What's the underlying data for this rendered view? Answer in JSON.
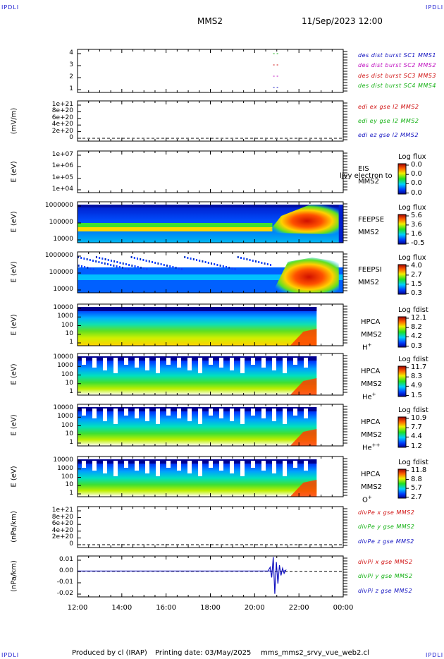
{
  "header": {
    "corner_label": "IPDLI",
    "spacecraft": "MMS2",
    "date_time": "11/Sep/2023 12:00"
  },
  "footer": {
    "produced_by": "Produced by cl (IRAP)",
    "printing_date": "Printing date: 03/May/2025",
    "script_name": "mms_mms2_srvy_vue_web2.cl"
  },
  "x_axis": {
    "ticks": [
      "12:00",
      "14:00",
      "16:00",
      "18:00",
      "20:00",
      "22:00",
      "00:00"
    ]
  },
  "colors": {
    "blue": "#1010c0",
    "magenta": "#c010c0",
    "red": "#d01010",
    "green": "#10b010"
  },
  "chart_data": [
    {
      "type": "scatter",
      "panel": "burst",
      "yticks": [
        "4",
        "3",
        "2",
        "1"
      ],
      "legend": [
        {
          "text": "des dist burst SC1 MMS1",
          "color": "#1010c0"
        },
        {
          "text": "des dist burst SC2 MMS2",
          "color": "#c010c0"
        },
        {
          "text": "des dist burst SC3 MMS3",
          "color": "#d01010"
        },
        {
          "text": "des dist burst SC4 MMS4",
          "color": "#10b010"
        }
      ],
      "points": [
        {
          "sc": 4,
          "t": 20.9,
          "color": "#10b010"
        },
        {
          "sc": 3,
          "t": 20.9,
          "color": "#d01010"
        },
        {
          "sc": 2,
          "t": 20.9,
          "color": "#c010c0"
        },
        {
          "sc": 1,
          "t": 20.9,
          "color": "#1010c0"
        }
      ]
    },
    {
      "type": "line",
      "panel": "edi",
      "ylabel": "(mV/m)",
      "yticks": [
        "1e+21",
        "8e+20",
        "6e+20",
        "4e+20",
        "2e+20",
        "0"
      ],
      "legend": [
        {
          "text": "edi ex gse l2 MMS2",
          "color": "#d01010"
        },
        {
          "text": "edi ey gse l2 MMS2",
          "color": "#10b010"
        },
        {
          "text": "edi ez gse l2 MMS2",
          "color": "#1010c0"
        }
      ]
    },
    {
      "type": "heatmap",
      "panel": "eis",
      "ylabel": "E (eV)",
      "yticks": [
        "1e+07",
        "1e+06",
        "1e+05",
        "1e+04"
      ],
      "instrument": "EIS",
      "species": "ljvy electron to",
      "spacecraft": "MMS2",
      "colorbar_title": "Log flux",
      "colorbar_values": [
        "0.0",
        "0.0",
        "0.0",
        "0.0"
      ]
    },
    {
      "type": "heatmap",
      "panel": "feepse",
      "ylabel": "E (eV)",
      "yticks": [
        "1000000",
        "100000",
        "10000"
      ],
      "instrument": "FEEPSE",
      "spacecraft": "MMS2",
      "colorbar_title": "Log flux",
      "colorbar_values": [
        "5.6",
        "3.6",
        "1.6",
        "-0.5"
      ]
    },
    {
      "type": "heatmap",
      "panel": "feepsi",
      "ylabel": "E (eV)",
      "yticks": [
        "1000000",
        "100000",
        "10000"
      ],
      "instrument": "FEEPSI",
      "spacecraft": "MMS2",
      "colorbar_title": "Log flux",
      "colorbar_values": [
        "4.0",
        "2.7",
        "1.5",
        "0.3"
      ]
    },
    {
      "type": "heatmap",
      "panel": "hpca_h",
      "ylabel": "E (eV)",
      "yticks": [
        "10000",
        "1000",
        "100",
        "10",
        "1"
      ],
      "instrument": "HPCA",
      "spacecraft": "MMS2",
      "species": "H",
      "species_sup": "+",
      "colorbar_title": "Log fdist",
      "colorbar_values": [
        "12.1",
        "8.2",
        "4.2",
        "0.3"
      ]
    },
    {
      "type": "heatmap",
      "panel": "hpca_he",
      "ylabel": "E (eV)",
      "yticks": [
        "10000",
        "1000",
        "100",
        "10",
        "1"
      ],
      "instrument": "HPCA",
      "spacecraft": "MMS2",
      "species": "He",
      "species_sup": "+",
      "colorbar_title": "Log fdist",
      "colorbar_values": [
        "11.7",
        "8.3",
        "4.9",
        "1.5"
      ]
    },
    {
      "type": "heatmap",
      "panel": "hpca_hepp",
      "ylabel": "E (eV)",
      "yticks": [
        "10000",
        "1000",
        "100",
        "10",
        "1"
      ],
      "instrument": "HPCA",
      "spacecraft": "MMS2",
      "species": "He",
      "species_sup": "++",
      "colorbar_title": "Log fdist",
      "colorbar_values": [
        "10.9",
        "7.7",
        "4.4",
        "1.2"
      ]
    },
    {
      "type": "heatmap",
      "panel": "hpca_o",
      "ylabel": "E (eV)",
      "yticks": [
        "10000",
        "1000",
        "100",
        "10",
        "1"
      ],
      "instrument": "HPCA",
      "spacecraft": "MMS2",
      "species": "O",
      "species_sup": "+",
      "colorbar_title": "Log fdist",
      "colorbar_values": [
        "11.8",
        "8.8",
        "5.7",
        "2.7"
      ]
    },
    {
      "type": "line",
      "panel": "divpe",
      "ylabel": "(nPa/km)",
      "yticks": [
        "1e+21",
        "8e+20",
        "6e+20",
        "4e+20",
        "2e+20",
        "0"
      ],
      "legend": [
        {
          "text": "divPe x gse MMS2",
          "color": "#d01010"
        },
        {
          "text": "divPe y gse MMS2",
          "color": "#10b010"
        },
        {
          "text": "divPe z gse MMS2",
          "color": "#1010c0"
        }
      ]
    },
    {
      "type": "line",
      "panel": "divpi",
      "ylabel": "(nPa/km)",
      "yticks": [
        "0.01",
        "0.00",
        "-0.01",
        "-0.02"
      ],
      "ylim": [
        -0.025,
        0.015
      ],
      "legend": [
        {
          "text": "divPi x gse MMS2",
          "color": "#d01010"
        },
        {
          "text": "divPi y gse MMS2",
          "color": "#10b010"
        },
        {
          "text": "divPi z gse MMS2",
          "color": "#1010c0"
        }
      ]
    }
  ]
}
